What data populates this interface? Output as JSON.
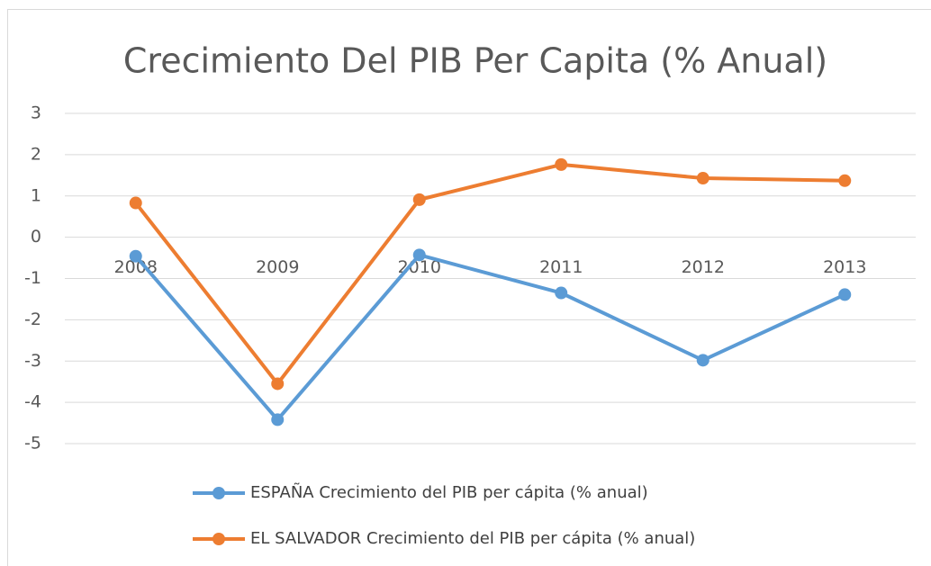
{
  "chart_data": {
    "type": "line",
    "title": "Crecimiento Del PIB Per Capita (% Anual)",
    "categories": [
      "2008",
      "2009",
      "2010",
      "2011",
      "2012",
      "2013"
    ],
    "series": [
      {
        "name": "ESPAÑA Crecimiento del PIB per cápita (% anual)",
        "color": "#5b9bd5",
        "values": [
          -0.46,
          -4.42,
          -0.43,
          -1.35,
          -2.98,
          -1.39
        ]
      },
      {
        "name": "EL SALVADOR Crecimiento del PIB per cápita (% anual)",
        "color": "#ed7d31",
        "values": [
          0.83,
          -3.55,
          0.91,
          1.76,
          1.43,
          1.37
        ]
      }
    ],
    "ylim": [
      -5,
      3
    ],
    "yticks": [
      -5,
      -4,
      -3,
      -2,
      -1,
      0,
      1,
      2,
      3
    ],
    "grid": true,
    "legend": "bottom"
  }
}
